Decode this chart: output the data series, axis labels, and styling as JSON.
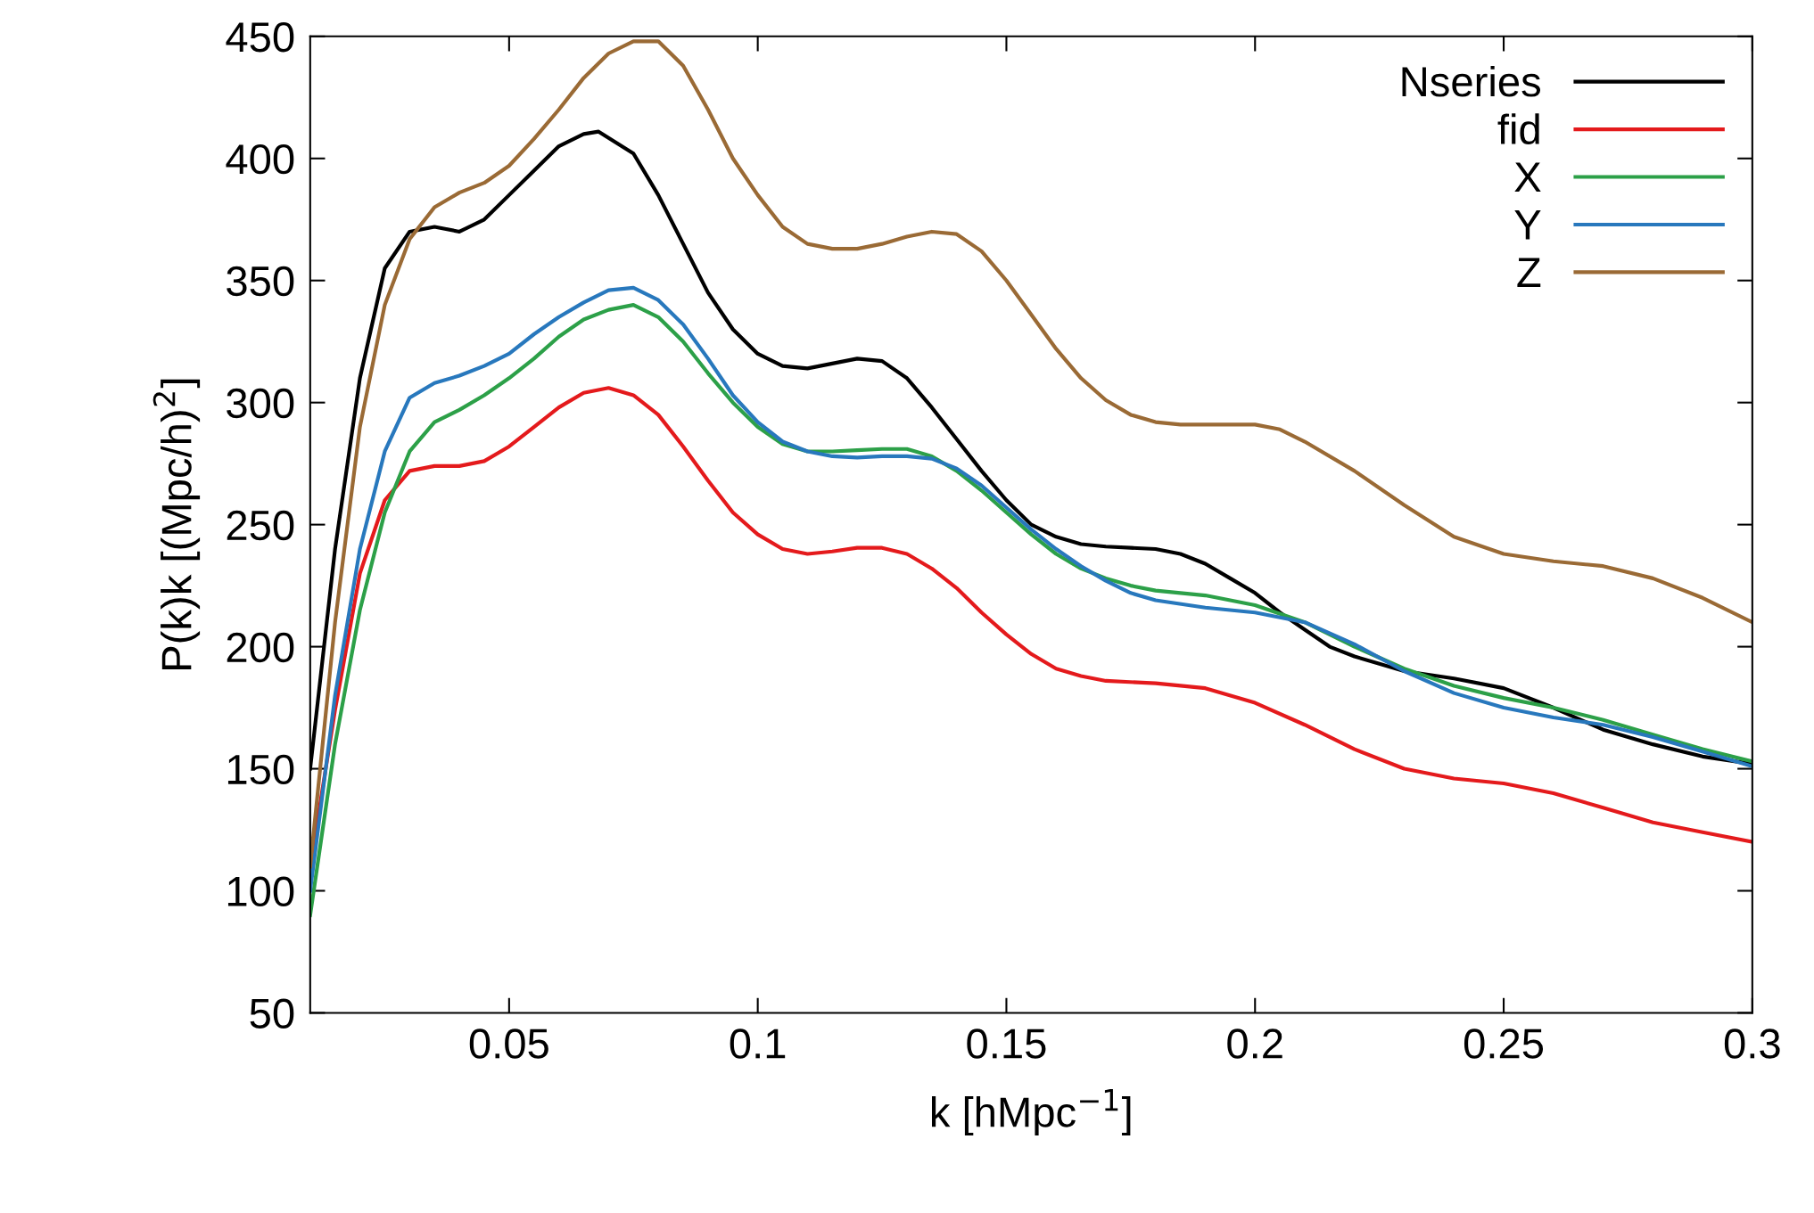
{
  "chart_data": {
    "type": "line",
    "xlabel": "k [hMpc$^{−1}$]",
    "ylabel": "P(k)k [(Mpc/h)$^{2}$]",
    "xlim": [
      0.01,
      0.3
    ],
    "ylim": [
      50,
      450
    ],
    "xticks": [
      0.05,
      0.1,
      0.15,
      0.2,
      0.25,
      0.3
    ],
    "yticks": [
      50,
      100,
      150,
      200,
      250,
      300,
      350,
      400,
      450
    ],
    "grid": false,
    "legend": "top right",
    "marker": "none",
    "line_style": "solid",
    "series": [
      {
        "name": "Nseries",
        "color": "#000000",
        "x": [
          0.01,
          0.015,
          0.02,
          0.025,
          0.03,
          0.035,
          0.04,
          0.045,
          0.05,
          0.055,
          0.06,
          0.065,
          0.068,
          0.075,
          0.08,
          0.085,
          0.09,
          0.095,
          0.1,
          0.105,
          0.11,
          0.115,
          0.12,
          0.125,
          0.13,
          0.135,
          0.14,
          0.145,
          0.15,
          0.155,
          0.16,
          0.165,
          0.17,
          0.175,
          0.18,
          0.185,
          0.19,
          0.195,
          0.2,
          0.205,
          0.21,
          0.215,
          0.22,
          0.225,
          0.23,
          0.24,
          0.25,
          0.26,
          0.27,
          0.28,
          0.29,
          0.3
        ],
        "values": [
          150,
          240,
          310,
          355,
          370,
          372,
          370,
          375,
          385,
          395,
          405,
          410,
          411,
          402,
          385,
          365,
          345,
          330,
          320,
          315,
          314,
          316,
          318,
          317,
          310,
          298,
          285,
          272,
          260,
          250,
          245,
          242,
          241,
          240.5,
          240,
          238,
          234,
          228,
          222,
          214,
          207,
          200,
          196,
          193,
          190,
          187,
          183,
          175,
          166,
          160,
          155,
          152
        ]
      },
      {
        "name": "fid",
        "color": "#e41a1c",
        "x": [
          0.01,
          0.015,
          0.02,
          0.025,
          0.03,
          0.035,
          0.04,
          0.045,
          0.05,
          0.055,
          0.06,
          0.065,
          0.07,
          0.075,
          0.08,
          0.085,
          0.09,
          0.095,
          0.1,
          0.105,
          0.11,
          0.115,
          0.12,
          0.125,
          0.13,
          0.135,
          0.14,
          0.145,
          0.15,
          0.155,
          0.16,
          0.165,
          0.17,
          0.18,
          0.19,
          0.2,
          0.21,
          0.22,
          0.23,
          0.24,
          0.25,
          0.26,
          0.27,
          0.28,
          0.29,
          0.3
        ],
        "values": [
          110,
          174,
          230,
          260,
          272,
          274,
          274,
          276,
          282,
          290,
          298,
          304,
          306,
          303,
          295,
          282,
          268,
          255,
          246,
          240,
          238,
          239,
          240.5,
          240.5,
          238,
          232,
          224,
          214,
          205,
          197,
          191,
          188,
          186,
          185,
          183,
          177,
          168,
          158,
          150,
          146,
          144,
          140,
          134,
          128,
          124,
          120
        ]
      },
      {
        "name": "X",
        "color": "#2ca048",
        "x": [
          0.01,
          0.015,
          0.02,
          0.025,
          0.03,
          0.035,
          0.04,
          0.045,
          0.05,
          0.055,
          0.06,
          0.065,
          0.07,
          0.075,
          0.08,
          0.085,
          0.09,
          0.095,
          0.1,
          0.105,
          0.11,
          0.115,
          0.12,
          0.125,
          0.13,
          0.135,
          0.14,
          0.145,
          0.15,
          0.155,
          0.16,
          0.165,
          0.17,
          0.175,
          0.18,
          0.19,
          0.2,
          0.21,
          0.22,
          0.23,
          0.24,
          0.25,
          0.26,
          0.27,
          0.28,
          0.29,
          0.3
        ],
        "values": [
          90,
          160,
          215,
          255,
          280,
          292,
          297,
          303,
          310,
          318,
          327,
          334,
          338,
          340,
          335,
          325,
          312,
          300,
          290,
          283,
          280,
          280,
          280.5,
          281,
          281,
          278,
          272,
          264,
          255,
          246,
          238,
          232,
          228,
          225,
          223,
          221,
          217,
          210,
          200,
          191,
          184,
          179,
          175,
          170,
          164,
          158,
          153
        ]
      },
      {
        "name": "Y",
        "color": "#2878bd",
        "x": [
          0.01,
          0.015,
          0.02,
          0.025,
          0.03,
          0.035,
          0.04,
          0.045,
          0.05,
          0.055,
          0.06,
          0.065,
          0.07,
          0.075,
          0.08,
          0.085,
          0.09,
          0.095,
          0.1,
          0.105,
          0.11,
          0.115,
          0.12,
          0.125,
          0.13,
          0.135,
          0.14,
          0.145,
          0.15,
          0.155,
          0.16,
          0.165,
          0.17,
          0.175,
          0.18,
          0.19,
          0.2,
          0.21,
          0.22,
          0.23,
          0.24,
          0.25,
          0.26,
          0.27,
          0.28,
          0.29,
          0.3
        ],
        "values": [
          100,
          180,
          240,
          280,
          302,
          308,
          311,
          315,
          320,
          328,
          335,
          341,
          346,
          347,
          342,
          332,
          318,
          303,
          292,
          284,
          280,
          278,
          277.5,
          278,
          278,
          277,
          273,
          266,
          257,
          248,
          240,
          233,
          227,
          222,
          219,
          216,
          214,
          210,
          201,
          190,
          181,
          175,
          171,
          168,
          163,
          157,
          151
        ]
      },
      {
        "name": "Z",
        "color": "#9a6a35",
        "x": [
          0.01,
          0.015,
          0.02,
          0.025,
          0.03,
          0.035,
          0.04,
          0.045,
          0.05,
          0.055,
          0.06,
          0.065,
          0.07,
          0.075,
          0.08,
          0.085,
          0.09,
          0.095,
          0.1,
          0.105,
          0.11,
          0.115,
          0.12,
          0.125,
          0.13,
          0.135,
          0.14,
          0.145,
          0.15,
          0.155,
          0.16,
          0.165,
          0.17,
          0.175,
          0.18,
          0.185,
          0.19,
          0.2,
          0.205,
          0.21,
          0.22,
          0.23,
          0.24,
          0.25,
          0.26,
          0.27,
          0.28,
          0.29,
          0.3
        ],
        "values": [
          110,
          210,
          290,
          340,
          367,
          380,
          386,
          390,
          397,
          408,
          420,
          433,
          443,
          448,
          448,
          438,
          420,
          400,
          385,
          372,
          365,
          363,
          363,
          365,
          368,
          370,
          369,
          362,
          350,
          336,
          322,
          310,
          301,
          295,
          292,
          291,
          291,
          291,
          289,
          284,
          272,
          258,
          245,
          238,
          235,
          233,
          228,
          220,
          210
        ]
      }
    ]
  }
}
